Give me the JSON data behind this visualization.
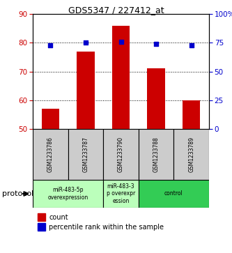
{
  "title": "GDS5347 / 227412_at",
  "samples": [
    "GSM1233786",
    "GSM1233787",
    "GSM1233790",
    "GSM1233788",
    "GSM1233789"
  ],
  "bar_values": [
    57,
    77,
    86,
    71,
    60
  ],
  "percentile_values": [
    73,
    75,
    76,
    74,
    73
  ],
  "bar_bottom": 50,
  "ylim_left": [
    50,
    90
  ],
  "ylim_right": [
    0,
    100
  ],
  "yticks_left": [
    50,
    60,
    70,
    80,
    90
  ],
  "yticks_right": [
    0,
    25,
    50,
    75,
    100
  ],
  "ytick_labels_right": [
    "0",
    "25",
    "50",
    "75",
    "100%"
  ],
  "bar_color": "#cc0000",
  "dot_color": "#0000cc",
  "groups": [
    {
      "label": "miR-483-5p\noverexpression",
      "indices": [
        0,
        1
      ],
      "color": "#bbffbb"
    },
    {
      "label": "miR-483-3\np overexpr\nession",
      "indices": [
        2
      ],
      "color": "#bbffbb"
    },
    {
      "label": "control",
      "indices": [
        3,
        4
      ],
      "color": "#33cc55"
    }
  ],
  "protocol_label": "protocol",
  "legend_count_label": "count",
  "legend_pct_label": "percentile rank within the sample",
  "background_color": "#ffffff",
  "plot_bg": "#ffffff",
  "sample_box_color": "#cccccc"
}
